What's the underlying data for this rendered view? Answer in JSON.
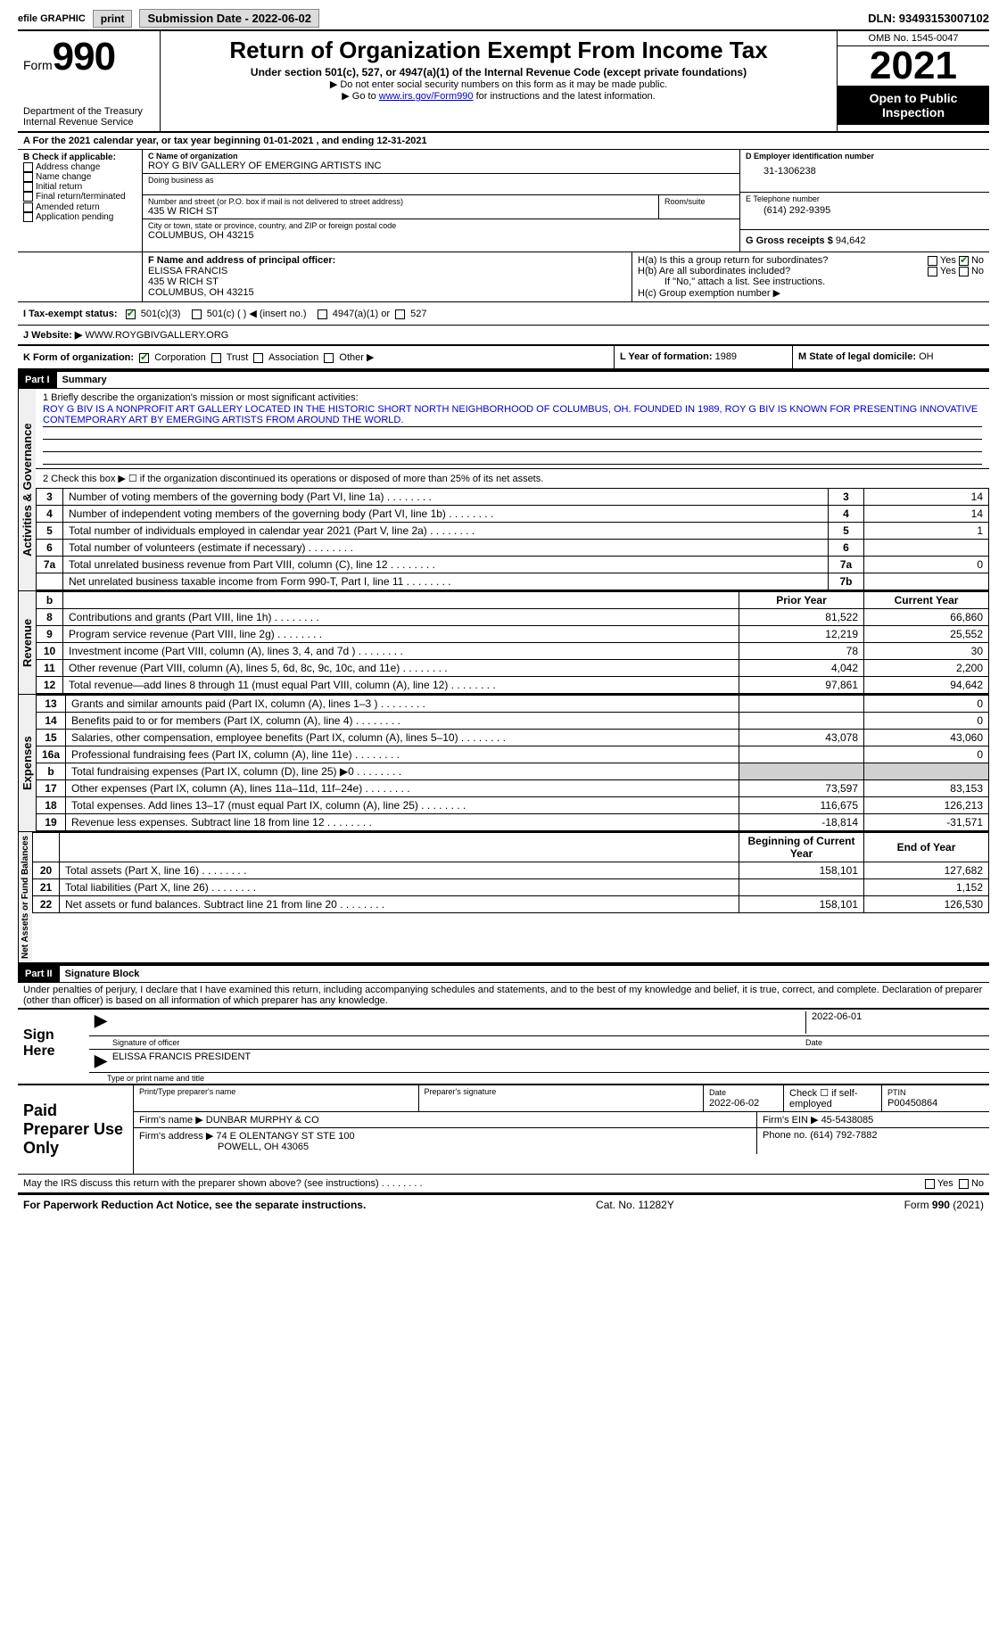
{
  "topbar": {
    "efile": "efile GRAPHIC",
    "print": "print",
    "submission": "Submission Date - 2022-06-02",
    "dln": "DLN: 93493153007102"
  },
  "header": {
    "form_word": "Form",
    "form_num": "990",
    "dept": "Department of the Treasury",
    "irs": "Internal Revenue Service",
    "title": "Return of Organization Exempt From Income Tax",
    "sub1": "Under section 501(c), 527, or 4947(a)(1) of the Internal Revenue Code (except private foundations)",
    "sub2": "▶ Do not enter social security numbers on this form as it may be made public.",
    "sub3_pre": "▶ Go to ",
    "sub3_link": "www.irs.gov/Form990",
    "sub3_post": " for instructions and the latest information.",
    "omb": "OMB No. 1545-0047",
    "year": "2021",
    "open": "Open to Public Inspection"
  },
  "period": {
    "label": "A For the 2021 calendar year, or tax year beginning ",
    "begin": "01-01-2021",
    "mid": " , and ending ",
    "end": "12-31-2021"
  },
  "boxB": {
    "label": "B Check if applicable:",
    "opts": [
      "Address change",
      "Name change",
      "Initial return",
      "Final return/terminated",
      "Amended return",
      "Application pending"
    ]
  },
  "boxC": {
    "label": "C Name of organization",
    "name": "ROY G BIV GALLERY OF EMERGING ARTISTS INC",
    "dba_label": "Doing business as",
    "addr_label": "Number and street (or P.O. box if mail is not delivered to street address)",
    "room_label": "Room/suite",
    "addr": "435 W RICH ST",
    "city_label": "City or town, state or province, country, and ZIP or foreign postal code",
    "city": "COLUMBUS, OH  43215"
  },
  "boxD": {
    "label": "D Employer identification number",
    "value": "31-1306238"
  },
  "boxE": {
    "label": "E Telephone number",
    "value": "(614) 292-9395"
  },
  "boxG": {
    "label": "G Gross receipts $",
    "value": "94,642"
  },
  "boxF": {
    "label": "F Name and address of principal officer:",
    "name": "ELISSA FRANCIS",
    "addr1": "435 W RICH ST",
    "addr2": "COLUMBUS, OH  43215"
  },
  "boxH": {
    "a_label": "H(a)  Is this a group return for subordinates?",
    "b_label": "H(b)  Are all subordinates included?",
    "b_note": "If \"No,\" attach a list. See instructions.",
    "c_label": "H(c)  Group exemption number ▶",
    "yes": "Yes",
    "no": "No"
  },
  "boxI": {
    "label": "I  Tax-exempt status:",
    "o1": "501(c)(3)",
    "o2": "501(c) (  ) ◀ (insert no.)",
    "o3": "4947(a)(1) or",
    "o4": "527"
  },
  "boxJ": {
    "label": "J  Website: ▶",
    "value": "WWW.ROYGBIVGALLERY.ORG"
  },
  "boxK": {
    "label": "K Form of organization:",
    "o1": "Corporation",
    "o2": "Trust",
    "o3": "Association",
    "o4": "Other ▶"
  },
  "boxL": {
    "label": "L Year of formation:",
    "value": "1989"
  },
  "boxM": {
    "label": "M State of legal domicile:",
    "value": "OH"
  },
  "part1": {
    "hdr": "Part I",
    "title": "Summary",
    "vtab_ag": "Activities & Governance",
    "vtab_rev": "Revenue",
    "vtab_exp": "Expenses",
    "vtab_na": "Net Assets or Fund Balances",
    "line1_label": "1  Briefly describe the organization's mission or most significant activities:",
    "mission": "ROY G BIV IS A NONPROFIT ART GALLERY LOCATED IN THE HISTORIC SHORT NORTH NEIGHBORHOOD OF COLUMBUS, OH. FOUNDED IN 1989, ROY G BIV IS KNOWN FOR PRESENTING INNOVATIVE CONTEMPORARY ART BY EMERGING ARTISTS FROM AROUND THE WORLD.",
    "line2": "2   Check this box ▶ ☐  if the organization discontinued its operations or disposed of more than 25% of its net assets.",
    "rows_ag": [
      {
        "n": "3",
        "t": "Number of voting members of the governing body (Part VI, line 1a)",
        "b": "3",
        "v": "14"
      },
      {
        "n": "4",
        "t": "Number of independent voting members of the governing body (Part VI, line 1b)",
        "b": "4",
        "v": "14"
      },
      {
        "n": "5",
        "t": "Total number of individuals employed in calendar year 2021 (Part V, line 2a)",
        "b": "5",
        "v": "1"
      },
      {
        "n": "6",
        "t": "Total number of volunteers (estimate if necessary)",
        "b": "6",
        "v": ""
      },
      {
        "n": "7a",
        "t": "Total unrelated business revenue from Part VIII, column (C), line 12",
        "b": "7a",
        "v": "0"
      },
      {
        "n": "",
        "t": "Net unrelated business taxable income from Form 990-T, Part I, line 11",
        "b": "7b",
        "v": ""
      }
    ],
    "col_prior": "Prior Year",
    "col_curr": "Current Year",
    "rows_rev": [
      {
        "n": "8",
        "t": "Contributions and grants (Part VIII, line 1h)",
        "p": "81,522",
        "c": "66,860"
      },
      {
        "n": "9",
        "t": "Program service revenue (Part VIII, line 2g)",
        "p": "12,219",
        "c": "25,552"
      },
      {
        "n": "10",
        "t": "Investment income (Part VIII, column (A), lines 3, 4, and 7d )",
        "p": "78",
        "c": "30"
      },
      {
        "n": "11",
        "t": "Other revenue (Part VIII, column (A), lines 5, 6d, 8c, 9c, 10c, and 11e)",
        "p": "4,042",
        "c": "2,200"
      },
      {
        "n": "12",
        "t": "Total revenue—add lines 8 through 11 (must equal Part VIII, column (A), line 12)",
        "p": "97,861",
        "c": "94,642"
      }
    ],
    "rows_exp": [
      {
        "n": "13",
        "t": "Grants and similar amounts paid (Part IX, column (A), lines 1–3 )",
        "p": "",
        "c": "0"
      },
      {
        "n": "14",
        "t": "Benefits paid to or for members (Part IX, column (A), line 4)",
        "p": "",
        "c": "0"
      },
      {
        "n": "15",
        "t": "Salaries, other compensation, employee benefits (Part IX, column (A), lines 5–10)",
        "p": "43,078",
        "c": "43,060"
      },
      {
        "n": "16a",
        "t": "Professional fundraising fees (Part IX, column (A), line 11e)",
        "p": "",
        "c": "0"
      },
      {
        "n": "b",
        "t": "Total fundraising expenses (Part IX, column (D), line 25) ▶0",
        "p": "GRAY",
        "c": "GRAY"
      },
      {
        "n": "17",
        "t": "Other expenses (Part IX, column (A), lines 11a–11d, 11f–24e)",
        "p": "73,597",
        "c": "83,153"
      },
      {
        "n": "18",
        "t": "Total expenses. Add lines 13–17 (must equal Part IX, column (A), line 25)",
        "p": "116,675",
        "c": "126,213"
      },
      {
        "n": "19",
        "t": "Revenue less expenses. Subtract line 18 from line 12",
        "p": "-18,814",
        "c": "-31,571"
      }
    ],
    "col_begin": "Beginning of Current Year",
    "col_end": "End of Year",
    "rows_na": [
      {
        "n": "20",
        "t": "Total assets (Part X, line 16)",
        "p": "158,101",
        "c": "127,682"
      },
      {
        "n": "21",
        "t": "Total liabilities (Part X, line 26)",
        "p": "",
        "c": "1,152"
      },
      {
        "n": "22",
        "t": "Net assets or fund balances. Subtract line 21 from line 20",
        "p": "158,101",
        "c": "126,530"
      }
    ]
  },
  "part2": {
    "hdr": "Part II",
    "title": "Signature Block",
    "decl": "Under penalties of perjury, I declare that I have examined this return, including accompanying schedules and statements, and to the best of my knowledge and belief, it is true, correct, and complete. Declaration of preparer (other than officer) is based on all information of which preparer has any knowledge.",
    "sign_here": "Sign Here",
    "sig_officer": "Signature of officer",
    "sig_date": "2022-06-01",
    "date_label": "Date",
    "name_title": "ELISSA FRANCIS  PRESIDENT",
    "name_title_label": "Type or print name and title",
    "paid": "Paid Preparer Use Only",
    "prep_name_label": "Print/Type preparer's name",
    "prep_sig_label": "Preparer's signature",
    "prep_date_label": "Date",
    "prep_date": "2022-06-02",
    "self_emp": "Check ☐ if self-employed",
    "ptin_label": "PTIN",
    "ptin": "P00450864",
    "firm_name_label": "Firm's name    ▶",
    "firm_name": "DUNBAR MURPHY & CO",
    "firm_ein_label": "Firm's EIN ▶",
    "firm_ein": "45-5438085",
    "firm_addr_label": "Firm's address ▶",
    "firm_addr1": "74 E OLENTANGY ST STE 100",
    "firm_addr2": "POWELL, OH  43065",
    "firm_phone_label": "Phone no.",
    "firm_phone": "(614) 792-7882",
    "discuss": "May the IRS discuss this return with the preparer shown above? (see instructions)",
    "yes": "Yes",
    "no": "No"
  },
  "footer": {
    "pra": "For Paperwork Reduction Act Notice, see the separate instructions.",
    "cat": "Cat. No. 11282Y",
    "form": "Form 990 (2021)"
  }
}
